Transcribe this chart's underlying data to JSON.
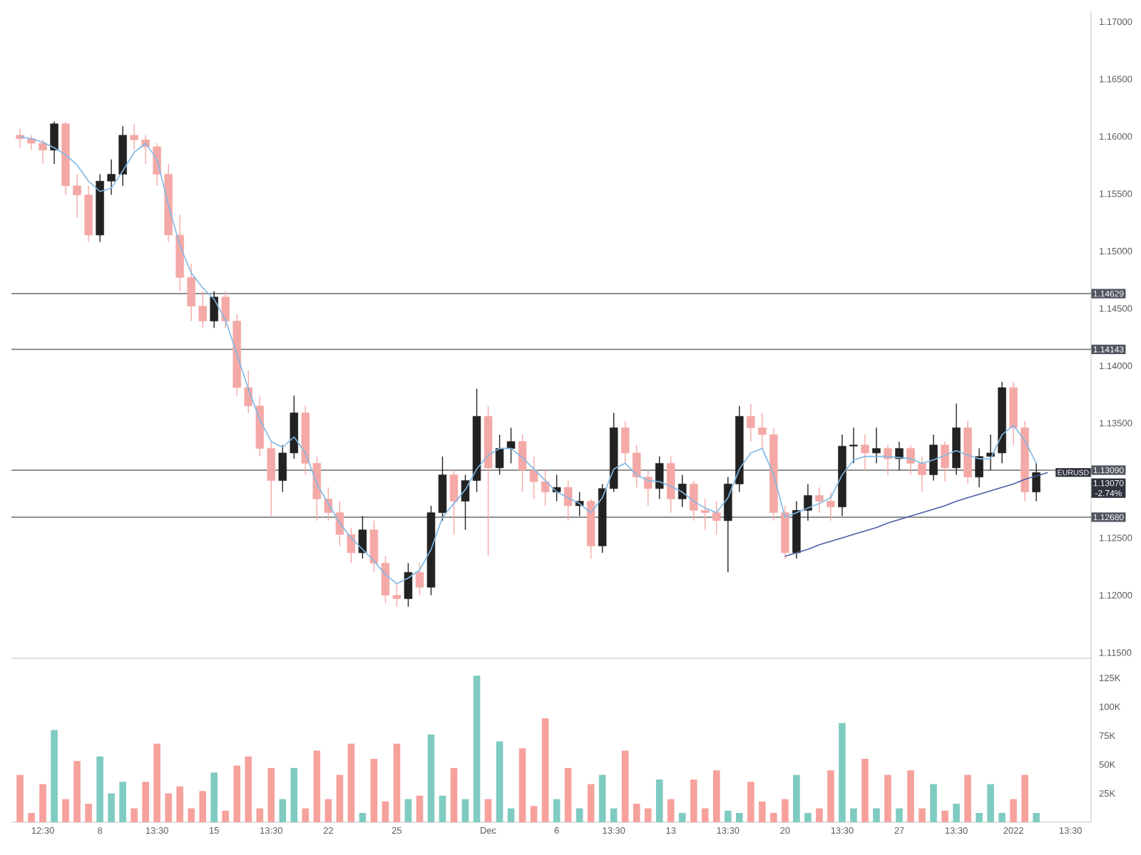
{
  "chart_data": [
    {
      "type": "candlestick",
      "categories": [
        null,
        null,
        null,
        null,
        null,
        null,
        null,
        null,
        null,
        null,
        null,
        null,
        null,
        null,
        null,
        null,
        null,
        null,
        null,
        null,
        null,
        null,
        null,
        null,
        null,
        null,
        null,
        null,
        null,
        null,
        null,
        null,
        null,
        null,
        null,
        null,
        null,
        null,
        null,
        null,
        null,
        null,
        null,
        null,
        null,
        null,
        null,
        null,
        null,
        null,
        null,
        null,
        null,
        null,
        null,
        null,
        null,
        null,
        null,
        null,
        null,
        null,
        null,
        null,
        null,
        null,
        null,
        null,
        null,
        null,
        null,
        null,
        null,
        null,
        null,
        null,
        null,
        null,
        null,
        null,
        null,
        null,
        null,
        null,
        null,
        null,
        null,
        null,
        null,
        null,
        null,
        null,
        null
      ],
      "ohlc": [
        [
          1.1601,
          1.1607,
          1.159,
          1.1598
        ],
        [
          1.1598,
          1.1601,
          1.1588,
          1.1594
        ],
        [
          1.1594,
          1.1597,
          1.1576,
          1.1588
        ],
        [
          1.1588,
          1.1613,
          1.1576,
          1.1611
        ],
        [
          1.1611,
          1.1613,
          1.1549,
          1.1557
        ],
        [
          1.1557,
          1.1567,
          1.1529,
          1.1549
        ],
        [
          1.1549,
          1.1557,
          1.1508,
          1.1514
        ],
        [
          1.1514,
          1.1567,
          1.1508,
          1.1561
        ],
        [
          1.1561,
          1.158,
          1.1549,
          1.1567
        ],
        [
          1.1567,
          1.1609,
          1.1557,
          1.1601
        ],
        [
          1.1601,
          1.1611,
          1.1588,
          1.1597
        ],
        [
          1.1597,
          1.1601,
          1.1576,
          1.1591
        ],
        [
          1.1591,
          1.1594,
          1.1557,
          1.1567
        ],
        [
          1.1567,
          1.1576,
          1.1508,
          1.1514
        ],
        [
          1.1514,
          1.1532,
          1.1465,
          1.1477
        ],
        [
          1.1477,
          1.1489,
          1.1439,
          1.1452
        ],
        [
          1.1452,
          1.1465,
          1.1433,
          1.1439
        ],
        [
          1.1439,
          1.1465,
          1.1433,
          1.146
        ],
        [
          1.146,
          1.1465,
          1.1433,
          1.1439
        ],
        [
          1.1439,
          1.1445,
          1.1374,
          1.1381
        ],
        [
          1.1381,
          1.1396,
          1.1359,
          1.1365
        ],
        [
          1.1365,
          1.1374,
          1.1321,
          1.1328
        ],
        [
          1.1328,
          1.1334,
          1.1269,
          1.13
        ],
        [
          1.13,
          1.1331,
          1.129,
          1.1324
        ],
        [
          1.1324,
          1.1374,
          1.1319,
          1.1359
        ],
        [
          1.1359,
          1.1365,
          1.1305,
          1.1315
        ],
        [
          1.1315,
          1.1321,
          1.1265,
          1.1284
        ],
        [
          1.1284,
          1.1294,
          1.1265,
          1.1272
        ],
        [
          1.1272,
          1.1282,
          1.1243,
          1.1253
        ],
        [
          1.1253,
          1.1259,
          1.1228,
          1.1237
        ],
        [
          1.1237,
          1.1269,
          1.1232,
          1.1257
        ],
        [
          1.1257,
          1.1265,
          1.122,
          1.1228
        ],
        [
          1.1228,
          1.1234,
          1.1193,
          1.12
        ],
        [
          1.12,
          1.121,
          1.119,
          1.1197
        ],
        [
          1.1197,
          1.1228,
          1.119,
          1.122
        ],
        [
          1.122,
          1.1228,
          1.12,
          1.1207
        ],
        [
          1.1207,
          1.1278,
          1.12,
          1.1272
        ],
        [
          1.1272,
          1.1321,
          1.1265,
          1.1305
        ],
        [
          1.1305,
          1.1309,
          1.1253,
          1.1282
        ],
        [
          1.1282,
          1.1305,
          1.1257,
          1.13
        ],
        [
          1.13,
          1.138,
          1.129,
          1.1356
        ],
        [
          1.1356,
          1.1365,
          1.1234,
          1.1311
        ],
        [
          1.1311,
          1.134,
          1.1305,
          1.1328
        ],
        [
          1.1328,
          1.1346,
          1.1315,
          1.1334
        ],
        [
          1.1334,
          1.134,
          1.129,
          1.1309
        ],
        [
          1.1309,
          1.1321,
          1.1284,
          1.1299
        ],
        [
          1.1299,
          1.1309,
          1.1278,
          1.129
        ],
        [
          1.129,
          1.1305,
          1.1282,
          1.1294
        ],
        [
          1.1294,
          1.13,
          1.1265,
          1.1278
        ],
        [
          1.1278,
          1.129,
          1.1269,
          1.1282
        ],
        [
          1.1282,
          1.1284,
          1.1232,
          1.1243
        ],
        [
          1.1243,
          1.1297,
          1.1237,
          1.1293
        ],
        [
          1.1293,
          1.1359,
          1.129,
          1.1346
        ],
        [
          1.1346,
          1.1352,
          1.1315,
          1.1324
        ],
        [
          1.1324,
          1.1331,
          1.1294,
          1.1303
        ],
        [
          1.1303,
          1.1309,
          1.1278,
          1.1293
        ],
        [
          1.1293,
          1.1321,
          1.1284,
          1.1315
        ],
        [
          1.1315,
          1.1321,
          1.1272,
          1.1284
        ],
        [
          1.1284,
          1.1305,
          1.1277,
          1.1297
        ],
        [
          1.1297,
          1.13,
          1.1265,
          1.1274
        ],
        [
          1.1274,
          1.1284,
          1.1257,
          1.1272
        ],
        [
          1.1272,
          1.1282,
          1.1253,
          1.1265
        ],
        [
          1.1265,
          1.1303,
          1.122,
          1.1297
        ],
        [
          1.1297,
          1.1365,
          1.129,
          1.1356
        ],
        [
          1.1356,
          1.1367,
          1.1334,
          1.1346
        ],
        [
          1.1346,
          1.1359,
          1.1328,
          1.134
        ],
        [
          1.134,
          1.1346,
          1.1265,
          1.1272
        ],
        [
          1.1272,
          1.1278,
          1.1232,
          1.1237
        ],
        [
          1.1237,
          1.1282,
          1.1232,
          1.1274
        ],
        [
          1.1274,
          1.1297,
          1.1265,
          1.1287
        ],
        [
          1.1287,
          1.1294,
          1.1272,
          1.1282
        ],
        [
          1.1282,
          1.129,
          1.1265,
          1.1277
        ],
        [
          1.1277,
          1.134,
          1.1269,
          1.133
        ],
        [
          1.133,
          1.1346,
          1.1315,
          1.1331
        ],
        [
          1.1331,
          1.134,
          1.1309,
          1.1324
        ],
        [
          1.1324,
          1.1346,
          1.1315,
          1.1328
        ],
        [
          1.1328,
          1.1331,
          1.1305,
          1.1319
        ],
        [
          1.1319,
          1.1334,
          1.1309,
          1.1328
        ],
        [
          1.1328,
          1.1331,
          1.1305,
          1.1315
        ],
        [
          1.1315,
          1.1321,
          1.129,
          1.1305
        ],
        [
          1.1305,
          1.134,
          1.13,
          1.1331
        ],
        [
          1.1331,
          1.1334,
          1.1299,
          1.1311
        ],
        [
          1.1311,
          1.1367,
          1.1305,
          1.1346
        ],
        [
          1.1346,
          1.1352,
          1.1297,
          1.1303
        ],
        [
          1.1303,
          1.1328,
          1.1294,
          1.1321
        ],
        [
          1.1321,
          1.134,
          1.1309,
          1.1324
        ],
        [
          1.1324,
          1.1386,
          1.1315,
          1.1381
        ],
        [
          1.1381,
          1.1386,
          1.1331,
          1.1346
        ],
        [
          1.1346,
          1.1352,
          1.1282,
          1.129
        ],
        [
          1.129,
          1.1315,
          1.1282,
          1.1307
        ],
        null,
        null,
        null
      ],
      "colors": [
        "#f4a9a6",
        "#f4a9a6",
        "#f4a9a6",
        "#222222",
        "#f4a9a6",
        "#f4a9a6",
        "#f4a9a6",
        "#222222",
        "#222222",
        "#222222",
        "#f4a9a6",
        "#f4a9a6",
        "#f4a9a6",
        "#f4a9a6",
        "#f4a9a6",
        "#f4a9a6",
        "#f4a9a6",
        "#222222",
        "#f4a9a6",
        "#f4a9a6",
        "#f4a9a6",
        "#f4a9a6",
        "#f4a9a6",
        "#222222",
        "#222222",
        "#f4a9a6",
        "#f4a9a6",
        "#f4a9a6",
        "#f4a9a6",
        "#f4a9a6",
        "#222222",
        "#f4a9a6",
        "#f4a9a6",
        "#f4a9a6",
        "#222222",
        "#f4a9a6",
        "#222222",
        "#222222",
        "#f4a9a6",
        "#222222",
        "#222222",
        "#f4a9a6",
        "#222222",
        "#222222",
        "#f4a9a6",
        "#f4a9a6",
        "#f4a9a6",
        "#222222",
        "#f4a9a6",
        "#222222",
        "#f4a9a6",
        "#222222",
        "#222222",
        "#f4a9a6",
        "#f4a9a6",
        "#f4a9a6",
        "#222222",
        "#f4a9a6",
        "#222222",
        "#f4a9a6",
        "#f4a9a6",
        "#f4a9a6",
        "#222222",
        "#222222",
        "#f4a9a6",
        "#f4a9a6",
        "#f4a9a6",
        "#f4a9a6",
        "#222222",
        "#222222",
        "#f4a9a6",
        "#f4a9a6",
        "#222222",
        "#222222",
        "#f4a9a6",
        "#222222",
        "#f4a9a6",
        "#222222",
        "#f4a9a6",
        "#f4a9a6",
        "#222222",
        "#f4a9a6",
        "#222222",
        "#f4a9a6",
        "#222222",
        "#222222",
        "#222222",
        "#f4a9a6",
        "#f4a9a6",
        "#222222",
        null,
        null,
        null
      ],
      "series": [
        {
          "type": "line",
          "color": "#7fb8e6",
          "values": [
            1.16,
            1.1598,
            1.1595,
            1.159,
            1.1584,
            1.1575,
            1.1561,
            1.1552,
            1.1555,
            1.157,
            1.1586,
            1.1594,
            1.158,
            1.154,
            1.1505,
            1.1481,
            1.1468,
            1.1458,
            1.144,
            1.141,
            1.138,
            1.1353,
            1.1334,
            1.1329,
            1.1338,
            1.1324,
            1.1297,
            1.128,
            1.1263,
            1.125,
            1.124,
            1.123,
            1.1218,
            1.121,
            1.1215,
            1.1222,
            1.124,
            1.1268,
            1.128,
            1.1292,
            1.131,
            1.1322,
            1.1328,
            1.1328,
            1.132,
            1.131,
            1.13,
            1.129,
            1.1285,
            1.128,
            1.1272,
            1.1285,
            1.131,
            1.1315,
            1.1305,
            1.13,
            1.1299,
            1.1295,
            1.129,
            1.1282,
            1.1276,
            1.1272,
            1.1285,
            1.131,
            1.1324,
            1.1328,
            1.1305,
            1.1268,
            1.1272,
            1.1276,
            1.128,
            1.1285,
            1.1305,
            1.1318,
            1.1321,
            1.1321,
            1.1321,
            1.132,
            1.1319,
            1.1315,
            1.1318,
            1.1322,
            1.1326,
            1.1322,
            1.1319,
            1.1319,
            1.134,
            1.1348,
            1.1335,
            1.1315,
            null,
            null,
            null
          ]
        },
        {
          "type": "line",
          "color": "#4b5ea8",
          "values": [
            null,
            null,
            null,
            null,
            null,
            null,
            null,
            null,
            null,
            null,
            null,
            null,
            null,
            null,
            null,
            null,
            null,
            null,
            null,
            null,
            null,
            null,
            null,
            null,
            null,
            null,
            null,
            null,
            null,
            null,
            null,
            null,
            null,
            null,
            null,
            null,
            null,
            null,
            null,
            null,
            null,
            null,
            null,
            null,
            null,
            null,
            null,
            null,
            null,
            null,
            null,
            null,
            null,
            null,
            null,
            null,
            null,
            null,
            null,
            null,
            null,
            null,
            null,
            null,
            null,
            null,
            null,
            1.1234,
            1.1237,
            1.124,
            1.1244,
            1.1247,
            1.125,
            1.1253,
            1.1256,
            1.1259,
            1.1263,
            1.1266,
            1.1269,
            1.1272,
            1.1275,
            1.1278,
            1.1282,
            1.1285,
            1.1288,
            1.1291,
            1.1294,
            1.1297,
            1.1301,
            1.1304,
            1.1307,
            null,
            null
          ]
        }
      ],
      "ylim": [
        1.1145,
        1.1709
      ],
      "yticks": [
        {
          "value": 1.115,
          "label": "1.11500"
        },
        {
          "value": 1.12,
          "label": "1.12000"
        },
        {
          "value": 1.125,
          "label": "1.12500"
        },
        {
          "value": 1.135,
          "label": "1.13500"
        },
        {
          "value": 1.14,
          "label": "1.14000"
        },
        {
          "value": 1.145,
          "label": "1.14500"
        },
        {
          "value": 1.15,
          "label": "1.15000"
        },
        {
          "value": 1.155,
          "label": "1.15500"
        },
        {
          "value": 1.16,
          "label": "1.16000"
        },
        {
          "value": 1.165,
          "label": "1.16500"
        },
        {
          "value": 1.17,
          "label": "1.17000"
        }
      ],
      "tick_labels": "y",
      "ref_lines": [
        {
          "axis": "y",
          "value": 1.14629,
          "label": "1.14629",
          "color": "#7f7f7f"
        },
        {
          "axis": "y",
          "value": 1.14143,
          "label": "1.14143",
          "color": "#7f7f7f"
        },
        {
          "axis": "y",
          "value": 1.1309,
          "label": "1.13090",
          "color": "#7f7f7f"
        },
        {
          "axis": "y",
          "value": 1.1268,
          "label": "1.12680",
          "color": "#7f7f7f"
        }
      ],
      "annotations": [
        "EURUSD",
        "1.13070",
        "-2.74%"
      ]
    },
    {
      "type": "bar",
      "categories": [
        null,
        null,
        "12:30",
        null,
        null,
        null,
        null,
        "8",
        null,
        null,
        null,
        null,
        "13:30",
        null,
        null,
        null,
        null,
        "15",
        null,
        null,
        null,
        null,
        "13:30",
        null,
        null,
        null,
        null,
        "22",
        null,
        null,
        null,
        null,
        null,
        "25",
        null,
        null,
        null,
        null,
        null,
        null,
        null,
        "Dec",
        null,
        null,
        null,
        null,
        null,
        "6",
        null,
        null,
        null,
        null,
        "13:30",
        null,
        null,
        null,
        null,
        "13",
        null,
        null,
        null,
        null,
        "13:30",
        null,
        null,
        null,
        null,
        "20",
        null,
        null,
        null,
        null,
        "13:30",
        null,
        null,
        null,
        null,
        "27",
        null,
        null,
        null,
        null,
        "13:30",
        null,
        null,
        null,
        null,
        "2022",
        null,
        null,
        null,
        null,
        "13:30"
      ],
      "values": [
        41000,
        8000,
        33000,
        80000,
        20000,
        53000,
        16000,
        57000,
        25000,
        35000,
        12000,
        35000,
        68000,
        25000,
        31000,
        12000,
        27000,
        43000,
        10000,
        49000,
        57000,
        12000,
        47000,
        20000,
        47000,
        12000,
        62000,
        20000,
        41000,
        68000,
        8000,
        55000,
        18000,
        68000,
        20000,
        23000,
        76000,
        23000,
        47000,
        20000,
        127000,
        20000,
        70000,
        12000,
        64000,
        14000,
        90000,
        20000,
        47000,
        12000,
        33000,
        41000,
        12000,
        62000,
        16000,
        12000,
        37000,
        20000,
        8000,
        37000,
        12000,
        45000,
        10000,
        8000,
        35000,
        18000,
        8000,
        20000,
        41000,
        8000,
        12000,
        45000,
        86000,
        12000,
        55000,
        12000,
        41000,
        12000,
        45000,
        12000,
        33000,
        10000,
        16000,
        41000,
        8000,
        33000,
        8000,
        20000,
        41000,
        8000,
        null,
        null,
        null
      ],
      "colors": [
        "#f6a19c",
        "#f6a19c",
        "#f6a19c",
        "#7fcbc1",
        "#f6a19c",
        "#f6a19c",
        "#f6a19c",
        "#7fcbc1",
        "#7fcbc1",
        "#7fcbc1",
        "#f6a19c",
        "#f6a19c",
        "#f6a19c",
        "#f6a19c",
        "#f6a19c",
        "#f6a19c",
        "#f6a19c",
        "#7fcbc1",
        "#f6a19c",
        "#f6a19c",
        "#f6a19c",
        "#f6a19c",
        "#f6a19c",
        "#7fcbc1",
        "#7fcbc1",
        "#f6a19c",
        "#f6a19c",
        "#f6a19c",
        "#f6a19c",
        "#f6a19c",
        "#7fcbc1",
        "#f6a19c",
        "#f6a19c",
        "#f6a19c",
        "#7fcbc1",
        "#f6a19c",
        "#7fcbc1",
        "#7fcbc1",
        "#f6a19c",
        "#7fcbc1",
        "#7fcbc1",
        "#f6a19c",
        "#7fcbc1",
        "#7fcbc1",
        "#f6a19c",
        "#f6a19c",
        "#f6a19c",
        "#7fcbc1",
        "#f6a19c",
        "#7fcbc1",
        "#f6a19c",
        "#7fcbc1",
        "#7fcbc1",
        "#f6a19c",
        "#f6a19c",
        "#f6a19c",
        "#7fcbc1",
        "#f6a19c",
        "#7fcbc1",
        "#f6a19c",
        "#f6a19c",
        "#f6a19c",
        "#7fcbc1",
        "#7fcbc1",
        "#f6a19c",
        "#f6a19c",
        "#f6a19c",
        "#f6a19c",
        "#7fcbc1",
        "#7fcbc1",
        "#f6a19c",
        "#f6a19c",
        "#7fcbc1",
        "#7fcbc1",
        "#f6a19c",
        "#7fcbc1",
        "#f6a19c",
        "#7fcbc1",
        "#f6a19c",
        "#f6a19c",
        "#7fcbc1",
        "#f6a19c",
        "#7fcbc1",
        "#f6a19c",
        "#7fcbc1",
        "#7fcbc1",
        "#7fcbc1",
        "#f6a19c",
        "#f6a19c",
        "#7fcbc1",
        null,
        null,
        null
      ],
      "ylim": [
        0,
        142000
      ],
      "yticks": [
        {
          "value": 25000,
          "label": "25K"
        },
        {
          "value": 50000,
          "label": "50K"
        },
        {
          "value": 75000,
          "label": "75K"
        },
        {
          "value": 100000,
          "label": "100K"
        },
        {
          "value": 125000,
          "label": "125K"
        }
      ]
    }
  ]
}
